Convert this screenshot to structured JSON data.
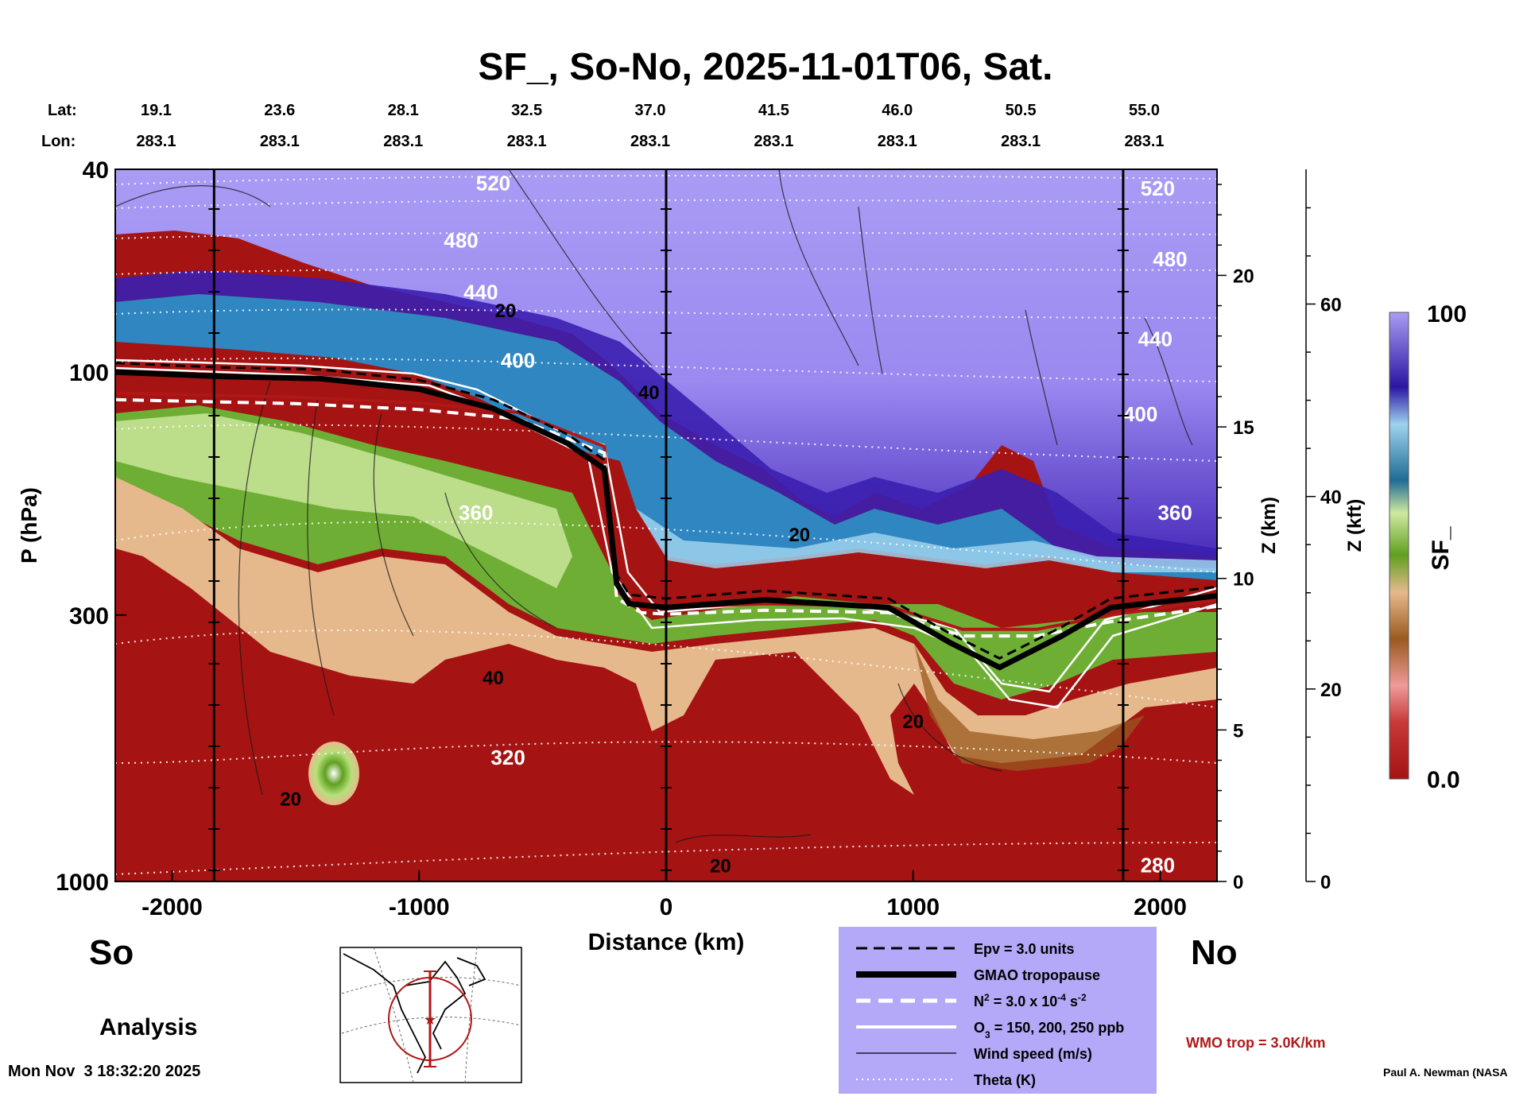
{
  "title": "SF_, So-No, 2025-11-01T06, Sat.",
  "lat_label": "Lat:",
  "lon_label": "Lon:",
  "lat_values": [
    "19.1",
    "23.6",
    "28.1",
    "32.5",
    "37.0",
    "41.5",
    "46.0",
    "50.5",
    "55.0"
  ],
  "lon_values": [
    "283.1",
    "283.1",
    "283.1",
    "283.1",
    "283.1",
    "283.1",
    "283.1",
    "283.1",
    "283.1"
  ],
  "left_region": "So",
  "right_region": "No",
  "analysis_label": "Analysis",
  "timestamp": "Mon Nov  3 18:32:20 2025",
  "credit": "Paul A. Newman (NASA",
  "wmo_label": "WMO trop = 3.0K/km",
  "colorbar": {
    "label": "SF_",
    "max_label": "100",
    "min_label": "0.0"
  },
  "legend": [
    {
      "style": "dashed-black",
      "parts": [
        [
          "Epv = 3.0 units",
          ""
        ]
      ]
    },
    {
      "style": "thick-black",
      "parts": [
        [
          "GMAO tropopause",
          ""
        ]
      ]
    },
    {
      "style": "dashed-white",
      "parts": [
        [
          "N",
          ""
        ],
        [
          "2",
          "sup"
        ],
        [
          " = 3.0 x 10",
          ""
        ],
        [
          "-4",
          "sup"
        ],
        [
          " s",
          ""
        ],
        [
          "-2",
          "sup"
        ]
      ]
    },
    {
      "style": "white",
      "parts": [
        [
          "O",
          ""
        ],
        [
          "3",
          "sub"
        ],
        [
          " = 150, 200, 250 ppb",
          ""
        ]
      ]
    },
    {
      "style": "thin-black",
      "parts": [
        [
          "Wind speed (m/s)",
          ""
        ]
      ]
    },
    {
      "style": "dotted-white",
      "parts": [
        [
          "Theta (K)",
          ""
        ]
      ]
    }
  ],
  "colors": {
    "stratosphere_high": "#a99cf4",
    "stratosphere_deep": "#3b1fb0",
    "blue": "#2f86c0",
    "green": "#6fae35",
    "tan": "#d19a63",
    "red": "#a51313",
    "wmo": "#b01818",
    "legend_bg": "#b4a8f8"
  },
  "chart_data": {
    "type": "heatmap",
    "title": "SF_, So-No, 2025-11-01T06, Sat.",
    "xlabel": "Distance (km)",
    "ylabel": "P (hPa)",
    "right_axis_1_label": "Z (km)",
    "right_axis_2_label": "Z (kft)",
    "xlim": [
      -2230,
      2230
    ],
    "ylim": [
      1000,
      40
    ],
    "yscale": "log",
    "x_ticks": [
      -2000,
      -1000,
      0,
      1000,
      2000
    ],
    "y_ticks": [
      40,
      100,
      300,
      1000
    ],
    "z_km_ticks": [
      0,
      5,
      10,
      15,
      20
    ],
    "z_kft_ticks": [
      0,
      20,
      40,
      60
    ],
    "colorbar_range": [
      0.0,
      100
    ],
    "tropopause_pressure_hPa": {
      "x": [
        -2230,
        -1800,
        -1400,
        -1000,
        -700,
        -400,
        -250,
        -200,
        -150,
        0,
        400,
        900,
        1150,
        1350,
        1600,
        1800,
        2230
      ],
      "y": [
        100,
        102,
        103,
        108,
        118,
        138,
        155,
        260,
        285,
        290,
        280,
        290,
        340,
        380,
        330,
        290,
        275
      ]
    },
    "wmo_tropopause_pressure_hPa": {
      "x": [
        -2230,
        -1500,
        -1000,
        -600,
        -250,
        -200,
        -100,
        0,
        400,
        900,
        1200,
        1500,
        1800,
        2230
      ],
      "y": [
        110,
        112,
        115,
        120,
        140,
        270,
        288,
        290,
        285,
        288,
        320,
        320,
        300,
        280
      ]
    },
    "wind_speed_contour_labels": [
      {
        "x": -1520,
        "y": 710,
        "text": "20"
      },
      {
        "x": -650,
        "y": 78,
        "text": "20"
      },
      {
        "x": -70,
        "y": 113,
        "text": "40"
      },
      {
        "x": -700,
        "y": 410,
        "text": "40"
      },
      {
        "x": 540,
        "y": 215,
        "text": "20"
      },
      {
        "x": 1000,
        "y": 500,
        "text": "20"
      },
      {
        "x": 220,
        "y": 960,
        "text": "20"
      }
    ],
    "theta_labels": [
      {
        "x": -700,
        "y": 44,
        "text": "520"
      },
      {
        "x": -830,
        "y": 57,
        "text": "480"
      },
      {
        "x": -750,
        "y": 72,
        "text": "440"
      },
      {
        "x": -600,
        "y": 98,
        "text": "400"
      },
      {
        "x": -770,
        "y": 195,
        "text": "360"
      },
      {
        "x": -640,
        "y": 590,
        "text": "320"
      },
      {
        "x": 1990,
        "y": 45,
        "text": "520"
      },
      {
        "x": 2040,
        "y": 62,
        "text": "480"
      },
      {
        "x": 1980,
        "y": 89,
        "text": "440"
      },
      {
        "x": 1920,
        "y": 125,
        "text": "400"
      },
      {
        "x": 2060,
        "y": 195,
        "text": "360"
      },
      {
        "x": 1990,
        "y": 960,
        "text": "280"
      }
    ]
  }
}
